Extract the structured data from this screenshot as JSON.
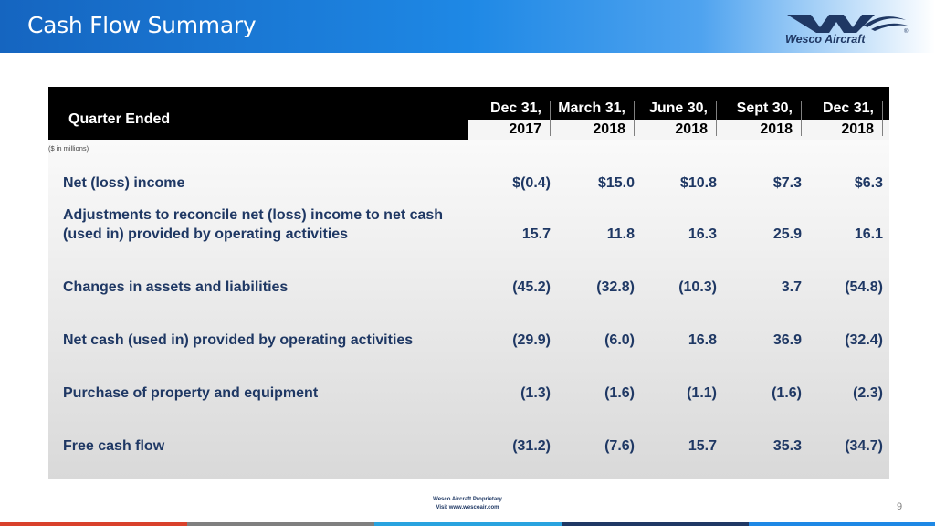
{
  "header": {
    "title": "Cash Flow Summary",
    "logo_text": "Wesco Aircraft",
    "logo_reg": "®"
  },
  "colors": {
    "title_bar": "#1565c0",
    "text_navy": "#1f3864",
    "table_header": "#000000",
    "stripe_red": "#d9412b",
    "stripe_blue": "#1e88e5",
    "stripe_navy": "#1f3864"
  },
  "table": {
    "header_label": "Quarter Ended",
    "units_note": "($ in millions)",
    "columns": [
      {
        "line1": "Dec 31,",
        "line2": "2017"
      },
      {
        "line1": "March 31,",
        "line2": "2018"
      },
      {
        "line1": "June 30,",
        "line2": "2018"
      },
      {
        "line1": "Sept 30,",
        "line2": "2018"
      },
      {
        "line1": "Dec 31,",
        "line2": "2018"
      }
    ],
    "rows": [
      {
        "label": "Net (loss) income",
        "values": [
          "$(0.4)",
          "$15.0",
          "$10.8",
          "$7.3",
          "$6.3"
        ]
      },
      {
        "label": "Adjustments to reconcile net (loss) income to net cash (used in) provided by operating activities",
        "values": [
          "15.7",
          "11.8",
          "16.3",
          "25.9",
          "16.1"
        ]
      },
      {
        "label": "Changes in assets and liabilities",
        "values": [
          "(45.2)",
          "(32.8)",
          "(10.3)",
          "3.7",
          "(54.8)"
        ]
      },
      {
        "label": "Net cash (used in) provided by operating activities",
        "values": [
          "(29.9)",
          "(6.0)",
          "16.8",
          "36.9",
          "(32.4)"
        ]
      },
      {
        "label": "Purchase of property and equipment",
        "values": [
          "(1.3)",
          "(1.6)",
          "(1.1)",
          "(1.6)",
          "(2.3)"
        ]
      },
      {
        "label": "Free cash flow",
        "values": [
          "(31.2)",
          "(7.6)",
          "15.7",
          "35.3",
          "(34.7)"
        ]
      }
    ]
  },
  "footer": {
    "line1": "Wesco Aircraft Proprietary",
    "line2": "Visit www.wescoair.com",
    "page_number": "9"
  }
}
